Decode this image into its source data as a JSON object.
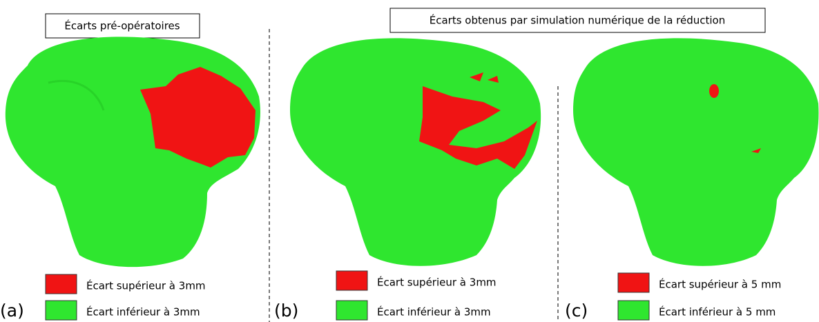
{
  "titles": {
    "preop": "Écarts pré-opératoires",
    "simulation": "Écarts obtenus par simulation numérique de la réduction"
  },
  "panels": [
    {
      "label": "(a)",
      "legend": [
        "Écart supérieur à 3mm",
        "Écart inférieur à 3mm"
      ]
    },
    {
      "label": "(b)",
      "legend": [
        "Écart supérieur à 3mm",
        "Écart inférieur à 3mm"
      ]
    },
    {
      "label": "(c)",
      "legend": [
        "Écart supérieur à 5 mm",
        "Écart inférieur à 5 mm"
      ]
    }
  ]
}
